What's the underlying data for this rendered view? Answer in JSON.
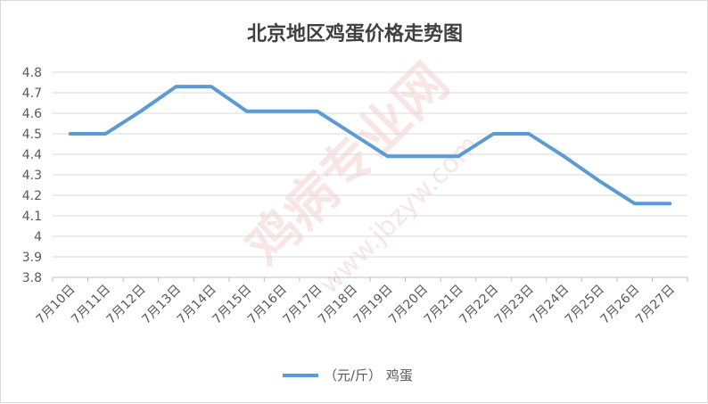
{
  "chart_data": {
    "type": "line",
    "title": "北京地区鸡蛋价格走势图",
    "categories": [
      "7月10日",
      "7月11日",
      "7月12日",
      "7月13日",
      "7月14日",
      "7月15日",
      "7月16日",
      "7月17日",
      "7月18日",
      "7月19日",
      "7月20日",
      "7月21日",
      "7月22日",
      "7月23日",
      "7月24日",
      "7月25日",
      "7月26日",
      "7月27日"
    ],
    "series": [
      {
        "name": "（元/斤） 鸡蛋",
        "color": "#5b9bd5",
        "values": [
          4.5,
          4.5,
          4.61,
          4.73,
          4.73,
          4.61,
          4.61,
          4.61,
          4.5,
          4.39,
          4.39,
          4.39,
          4.5,
          4.5,
          4.39,
          4.27,
          4.16,
          4.16
        ]
      }
    ],
    "ylim": [
      3.8,
      4.8
    ],
    "yticks": [
      "3.8",
      "3.9",
      "4",
      "4.1",
      "4.2",
      "4.3",
      "4.4",
      "4.5",
      "4.6",
      "4.7",
      "4.8"
    ],
    "grid": true,
    "legend_position": "bottom",
    "xlabel": "",
    "ylabel": ""
  },
  "watermark": {
    "main": "鸡病专业网",
    "url": "www.jbzyw.com",
    "color": "#e8a0a0"
  }
}
